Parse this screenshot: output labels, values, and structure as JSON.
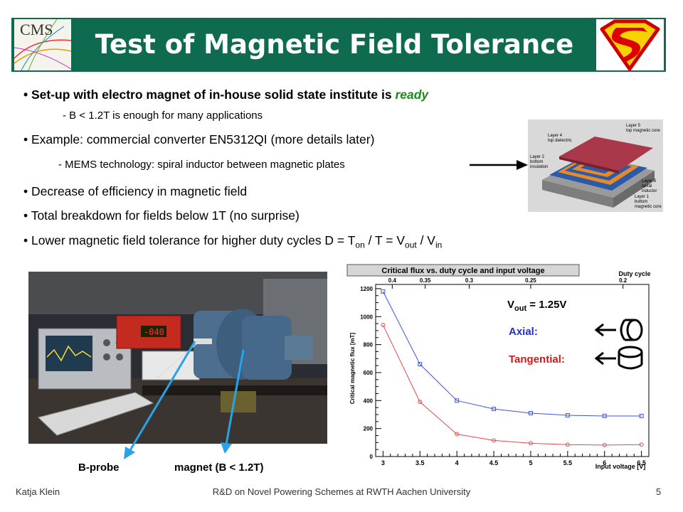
{
  "header": {
    "title": "Test of Magnetic Field Tolerance",
    "cms_logo_text": "CMS",
    "right_logo": "superman-shield-icon"
  },
  "bullets": {
    "b1_main": "Set-up with electro magnet of in-house solid state institute is ",
    "b1_emph": "ready",
    "b1_sub": "- B < 1.2T is enough for many applications",
    "b2_main": "Example: commercial converter EN5312QI (more details later)",
    "b2_sub": "- MEMS technology: spiral inductor between magnetic plates",
    "b3": "Decrease of efficiency in magnetic field",
    "b4": "Total breakdown for fields below 1T (no surprise)",
    "b5_pre": "Lower magnetic field tolerance for higher duty cycles D = T",
    "b5_on": "on",
    "b5_mid": " / T = V",
    "b5_out": "out",
    "b5_mid2": " / V",
    "b5_in": "in"
  },
  "diagram": {
    "layer5": "Layer 5",
    "layer5b": "top magnetic core",
    "layer4": "Layer 4",
    "layer4b": "top dielectric",
    "layer2": "Layer 2",
    "layer2b": "bottom",
    "layer2c": "insulation",
    "layer3": "Layer 3",
    "layer3b": "spiral",
    "layer3c": "inductor",
    "layer1": "Layer 1",
    "layer1b": "bottom",
    "layer1c": "magnetic core"
  },
  "photo": {
    "label_bprobe": "B-probe",
    "label_magnet": "magnet (B < 1.2T)"
  },
  "chart_data": {
    "type": "line",
    "title": "Critical flux vs. duty cycle and input voltage",
    "xlabel": "Input voltage [V]",
    "ylabel": "Critical magnetic flux [mT]",
    "x": [
      3,
      3.5,
      4,
      4.5,
      5,
      5.5,
      6,
      6.5
    ],
    "xlim": [
      2.9,
      6.6
    ],
    "ylim": [
      0,
      1230
    ],
    "xticks": [
      "3",
      "3.5",
      "4",
      "4.5",
      "5",
      "5.5",
      "6",
      "6.5"
    ],
    "yticks": [
      "0",
      "200",
      "400",
      "600",
      "800",
      "1000",
      "1200"
    ],
    "top_axis_label": "Duty cycle",
    "top_ticks": [
      "0.4",
      "0.35",
      "0.3",
      "0.25",
      "0.2"
    ],
    "top_ticks_x": [
      3.125,
      3.571,
      4.167,
      5,
      6.25
    ],
    "series": [
      {
        "name": "Axial",
        "color": "#3b55d8",
        "values": [
          1180,
          660,
          400,
          340,
          310,
          295,
          290,
          290
        ]
      },
      {
        "name": "Tangential",
        "color": "#e24a4a",
        "values": [
          940,
          390,
          160,
          115,
          95,
          85,
          82,
          85
        ]
      }
    ],
    "legend": {
      "vout_pre": "V",
      "vout_sub": "out",
      "vout_post": " = 1.25V",
      "axial": "Axial:",
      "tangential": "Tangential:",
      "axial_color": "#2030c0",
      "tangential_color": "#d01818"
    }
  },
  "footer": {
    "author": "Katja Klein",
    "center": "R&D on Novel Powering Schemes at RWTH Aachen University",
    "page": "5"
  }
}
